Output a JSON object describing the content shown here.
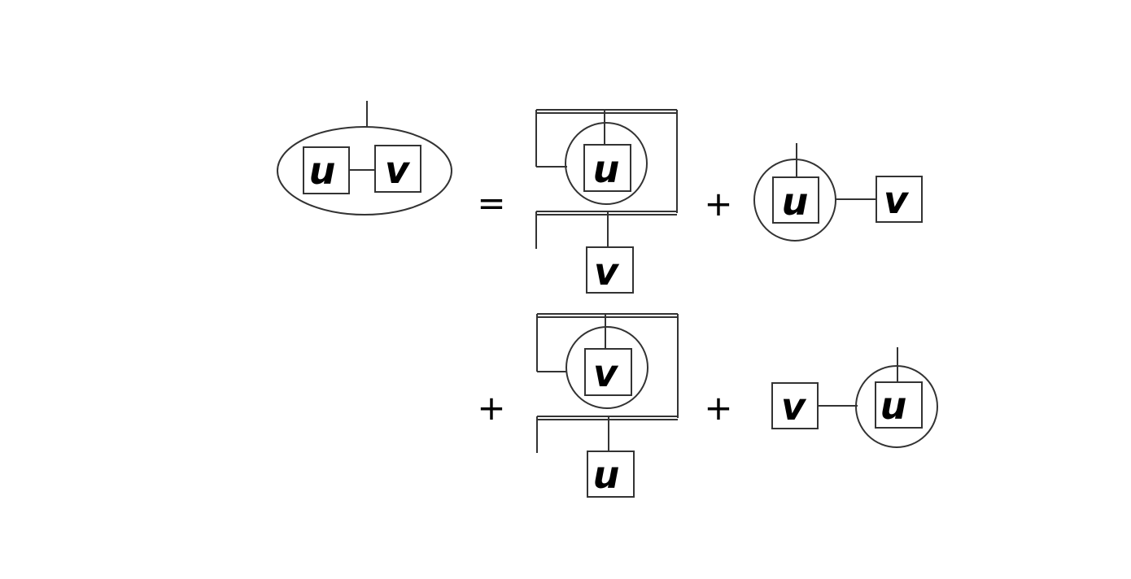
{
  "labels": {
    "u": "u",
    "v": "v"
  },
  "operators": {
    "equals": "=",
    "plus": "+"
  }
}
